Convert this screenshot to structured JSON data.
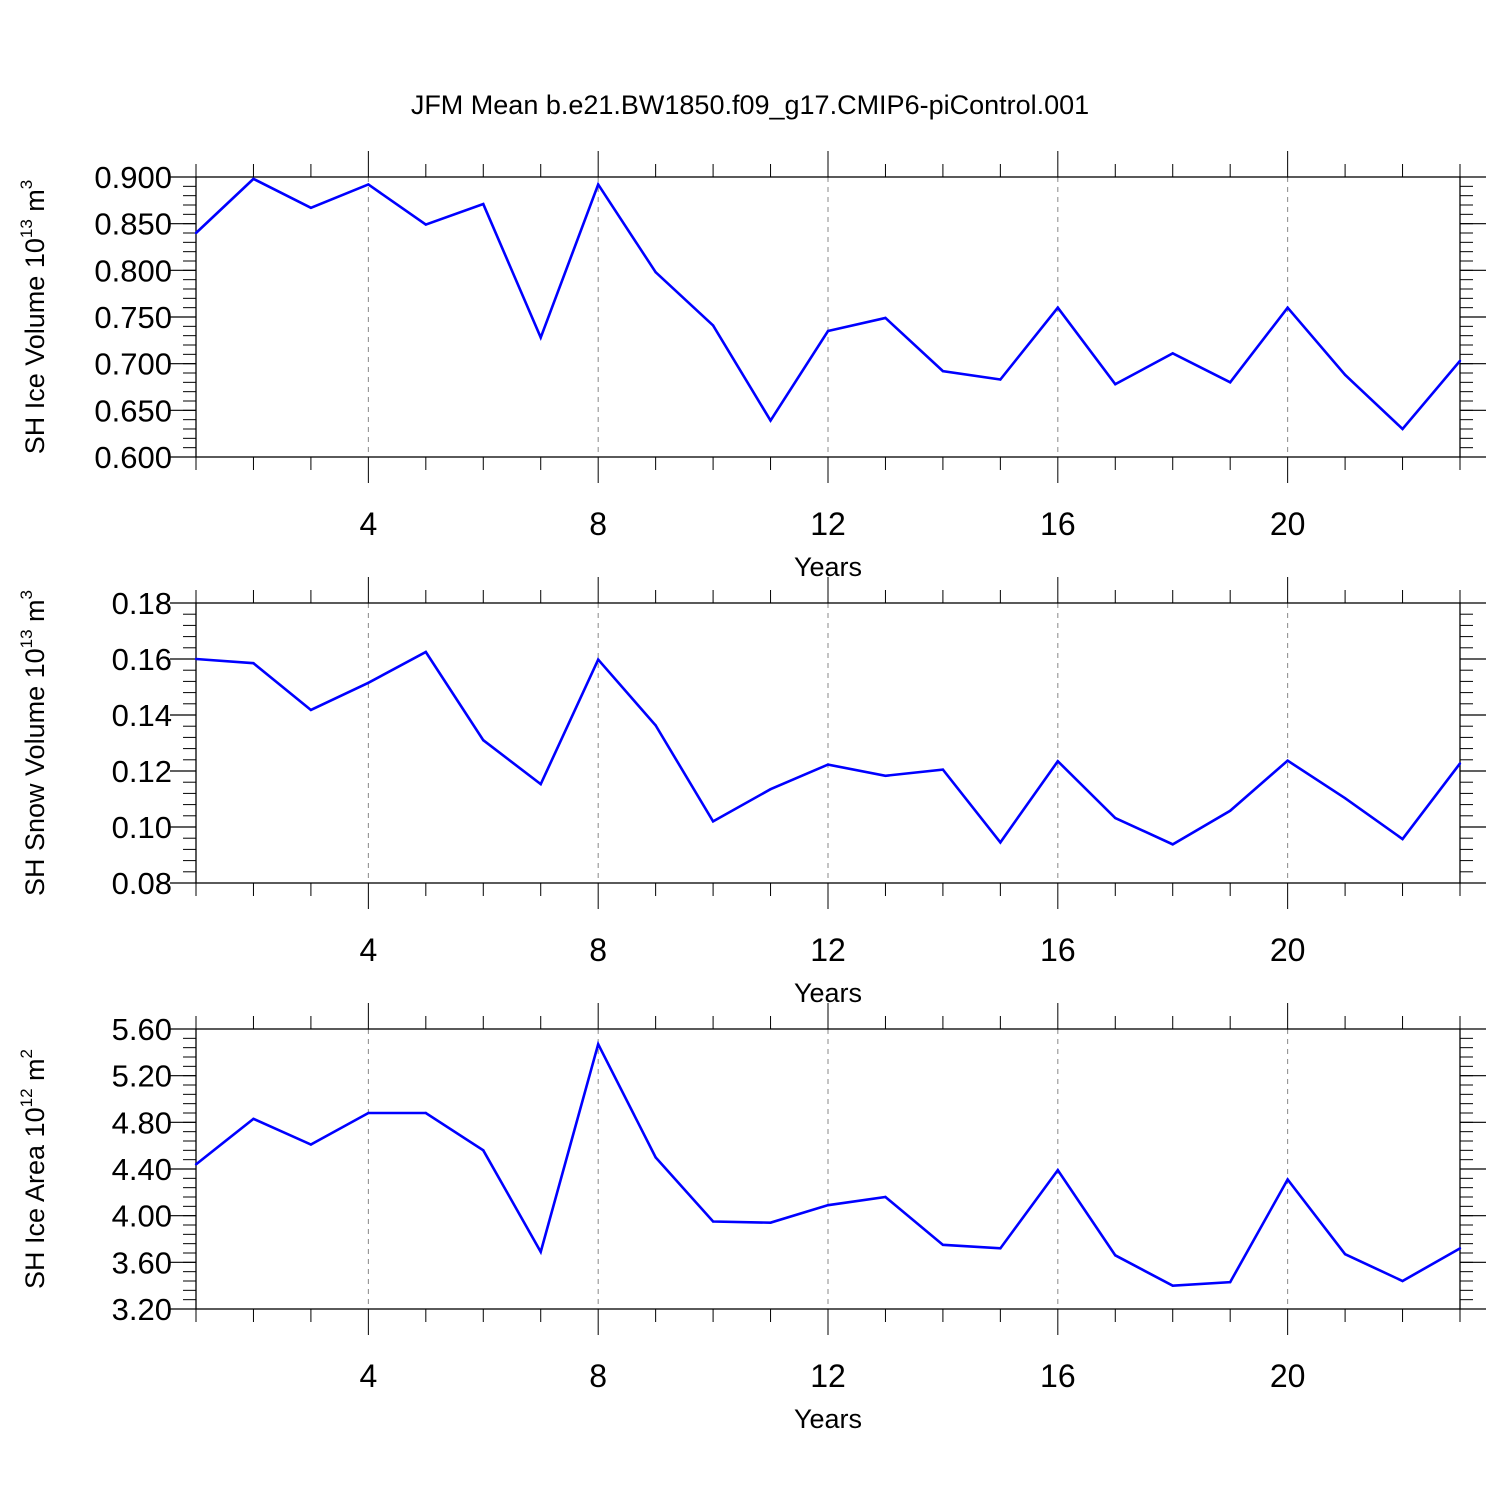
{
  "title": "JFM Mean b.e21.BW1850.f09_g17.CMIP6-piControl.001",
  "line_color": "#0000ff",
  "chart_data": [
    {
      "type": "line",
      "id": "ice-volume",
      "ylabel": "SH Ice Volume",
      "ylabel_unit_base": "10",
      "ylabel_unit_exp": "13",
      "ylabel_unit_sym": "m",
      "ylabel_unit_sym_exp": "3",
      "xlabel": "Years",
      "xlim": [
        1,
        23
      ],
      "ylim": [
        0.6,
        0.9
      ],
      "xticks": [
        4,
        8,
        12,
        16,
        20
      ],
      "xtick_labels": [
        "4",
        "8",
        "12",
        "16",
        "20"
      ],
      "yticks": [
        0.6,
        0.65,
        0.7,
        0.75,
        0.8,
        0.85,
        0.9
      ],
      "ytick_labels": [
        "0.600",
        "0.650",
        "0.700",
        "0.750",
        "0.800",
        "0.850",
        "0.900"
      ],
      "yminor_step": 0.01,
      "x": [
        1,
        2,
        3,
        4,
        5,
        6,
        7,
        8,
        9,
        10,
        11,
        12,
        13,
        14,
        15,
        16,
        17,
        18,
        19,
        20,
        21,
        22,
        23
      ],
      "values": [
        0.84,
        0.898,
        0.867,
        0.892,
        0.849,
        0.871,
        0.728,
        0.892,
        0.798,
        0.741,
        0.639,
        0.735,
        0.749,
        0.692,
        0.683,
        0.76,
        0.678,
        0.711,
        0.68,
        0.76,
        0.688,
        0.63,
        0.703
      ]
    },
    {
      "type": "line",
      "id": "snow-volume",
      "ylabel": "SH Snow Volume",
      "ylabel_unit_base": "10",
      "ylabel_unit_exp": "13",
      "ylabel_unit_sym": "m",
      "ylabel_unit_sym_exp": "3",
      "xlabel": "Years",
      "xlim": [
        1,
        23
      ],
      "ylim": [
        0.08,
        0.18
      ],
      "xticks": [
        4,
        8,
        12,
        16,
        20
      ],
      "xtick_labels": [
        "4",
        "8",
        "12",
        "16",
        "20"
      ],
      "yticks": [
        0.08,
        0.1,
        0.12,
        0.14,
        0.16,
        0.18
      ],
      "ytick_labels": [
        "0.08",
        "0.10",
        "0.12",
        "0.14",
        "0.16",
        "0.18"
      ],
      "yminor_step": 0.004,
      "x": [
        1,
        2,
        3,
        4,
        5,
        6,
        7,
        8,
        9,
        10,
        11,
        12,
        13,
        14,
        15,
        16,
        17,
        18,
        19,
        20,
        21,
        22,
        23
      ],
      "values": [
        0.16,
        0.1585,
        0.1418,
        0.1515,
        0.1625,
        0.131,
        0.1153,
        0.1598,
        0.1363,
        0.102,
        0.1135,
        0.1223,
        0.1183,
        0.1205,
        0.0945,
        0.1235,
        0.1032,
        0.0938,
        0.1058,
        0.1237,
        0.1103,
        0.0957,
        0.1227
      ]
    },
    {
      "type": "line",
      "id": "ice-area",
      "ylabel": "SH Ice Area",
      "ylabel_unit_base": "10",
      "ylabel_unit_exp": "12",
      "ylabel_unit_sym": "m",
      "ylabel_unit_sym_exp": "2",
      "xlabel": "Years",
      "xlim": [
        1,
        23
      ],
      "ylim": [
        3.2,
        5.6
      ],
      "xticks": [
        4,
        8,
        12,
        16,
        20
      ],
      "xtick_labels": [
        "4",
        "8",
        "12",
        "16",
        "20"
      ],
      "yticks": [
        3.2,
        3.6,
        4.0,
        4.4,
        4.8,
        5.2,
        5.6
      ],
      "ytick_labels": [
        "3.20",
        "3.60",
        "4.00",
        "4.40",
        "4.80",
        "5.20",
        "5.60"
      ],
      "yminor_step": 0.08,
      "x": [
        1,
        2,
        3,
        4,
        5,
        6,
        7,
        8,
        9,
        10,
        11,
        12,
        13,
        14,
        15,
        16,
        17,
        18,
        19,
        20,
        21,
        22,
        23
      ],
      "values": [
        4.44,
        4.83,
        4.61,
        4.88,
        4.88,
        4.56,
        3.69,
        5.47,
        4.5,
        3.95,
        3.94,
        4.09,
        4.16,
        3.75,
        3.72,
        4.39,
        3.66,
        3.4,
        3.43,
        4.31,
        3.67,
        3.44,
        3.72
      ]
    }
  ]
}
